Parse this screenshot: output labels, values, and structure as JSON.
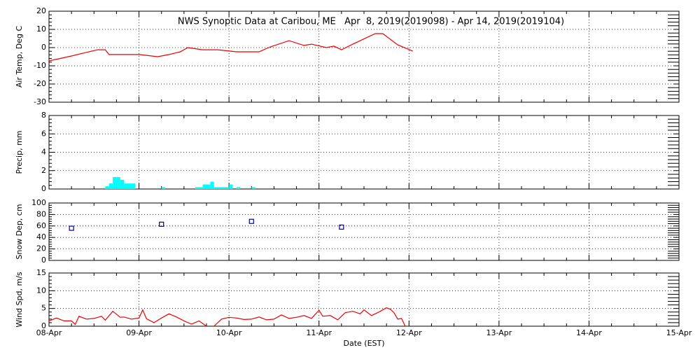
{
  "chart_data": [
    {
      "type": "line",
      "title": "NWS Synoptic Data at Caribou, ME   Apr  8, 2019(2019098) - Apr 14, 2019(2019104)",
      "y_label": "Air Temp, Deg C",
      "color": "#ee0000",
      "x": [
        0,
        6,
        9,
        13,
        15,
        16,
        24,
        29,
        32,
        35,
        37,
        41,
        45,
        50,
        56,
        59,
        64,
        68,
        70,
        74,
        76,
        78,
        81,
        87,
        89,
        93,
        97
      ],
      "values": [
        -7.3,
        -4.6,
        -3.1,
        -1.2,
        -1.2,
        -3.8,
        -3.8,
        -5,
        -3.8,
        -2.3,
        0,
        -1.2,
        -1.2,
        -2.3,
        -2.3,
        0.4,
        3.8,
        1.2,
        1.9,
        0,
        0.8,
        -1.2,
        1.9,
        7.7,
        7.7,
        1.5,
        -1.9
      ],
      "xlim": [
        0,
        168
      ],
      "xticks": [
        0,
        24,
        48,
        72,
        96,
        120,
        144,
        168
      ],
      "ylim": [
        -30,
        20
      ],
      "yticks": [
        -30,
        -20,
        -10,
        0,
        10,
        20
      ],
      "grid": true
    },
    {
      "type": "bar",
      "y_label": "Precip, mm",
      "color": "#00ffff",
      "x": [
        15,
        16,
        17,
        18,
        19,
        20,
        21,
        22,
        30,
        39,
        40,
        41,
        42,
        43,
        44,
        45,
        46,
        47,
        48,
        50,
        54
      ],
      "values": [
        0.3,
        0.6,
        1.3,
        1.3,
        1.0,
        0.6,
        0.6,
        0.6,
        0.2,
        0.2,
        0.2,
        0.5,
        0.5,
        0.8,
        0.2,
        0.2,
        0.2,
        0.2,
        0.5,
        0.2,
        0.2
      ],
      "xlim": [
        0,
        168
      ],
      "xticks": [
        0,
        24,
        48,
        72,
        96,
        120,
        144,
        168
      ],
      "ylim": [
        0,
        8
      ],
      "yticks": [
        0,
        2,
        4,
        6,
        8
      ],
      "grid": true
    },
    {
      "type": "scatter",
      "y_label": "Snow Dep, cm",
      "color": "#0000aa",
      "x": [
        6,
        30,
        54,
        78
      ],
      "values": [
        56,
        63,
        68,
        58
      ],
      "xlim": [
        0,
        168
      ],
      "xticks": [
        0,
        24,
        48,
        72,
        96,
        120,
        144,
        168
      ],
      "ylim": [
        0,
        100
      ],
      "yticks": [
        0,
        20,
        40,
        60,
        80,
        100
      ],
      "grid": true
    },
    {
      "type": "line",
      "y_label": "Wind Spd, m/s",
      "x_label": "Date (EST)",
      "color": "#ee0000",
      "x": [
        0,
        2,
        4,
        6,
        7,
        8,
        10,
        12,
        14,
        15,
        17,
        19,
        20,
        22,
        24,
        25,
        26,
        28,
        30,
        32,
        34,
        36,
        38,
        40,
        42,
        43,
        44,
        46,
        48,
        50,
        52,
        54,
        56,
        58,
        60,
        62,
        64,
        66,
        68,
        70,
        72,
        73,
        75,
        77,
        79,
        81,
        83,
        84,
        86,
        88,
        90,
        91,
        92,
        93,
        94,
        95
      ],
      "values": [
        1.5,
        2.3,
        1.5,
        1.5,
        0.5,
        2.8,
        2.0,
        2.2,
        2.8,
        1.7,
        4.2,
        2.5,
        2.6,
        2.0,
        2.3,
        4.6,
        2.1,
        1.0,
        2.3,
        3.5,
        2.6,
        1.5,
        0.6,
        1.5,
        0,
        null,
        0,
        2.0,
        2.5,
        2.3,
        1.9,
        2.0,
        2.6,
        1.8,
        2.0,
        3.2,
        2.2,
        2.5,
        3.0,
        2.2,
        4.5,
        2.8,
        3.0,
        1.8,
        3.8,
        4.2,
        3.5,
        4.6,
        3.0,
        4.0,
        5.2,
        4.8,
        3.8,
        2.0,
        2.2,
        0
      ],
      "xlim": [
        0,
        168
      ],
      "xticks": [
        {
          "value": 0,
          "label": "08-Apr"
        },
        {
          "value": 24,
          "label": "09-Apr"
        },
        {
          "value": 48,
          "label": "10-Apr"
        },
        {
          "value": 72,
          "label": "11-Apr"
        },
        {
          "value": 96,
          "label": "12-Apr"
        },
        {
          "value": 120,
          "label": "13-Apr"
        },
        {
          "value": 144,
          "label": "14-Apr"
        },
        {
          "value": 168,
          "label": "15-Apr"
        }
      ],
      "ylim": [
        0,
        15
      ],
      "yticks": [
        0,
        5,
        10,
        15
      ],
      "grid": true
    }
  ]
}
